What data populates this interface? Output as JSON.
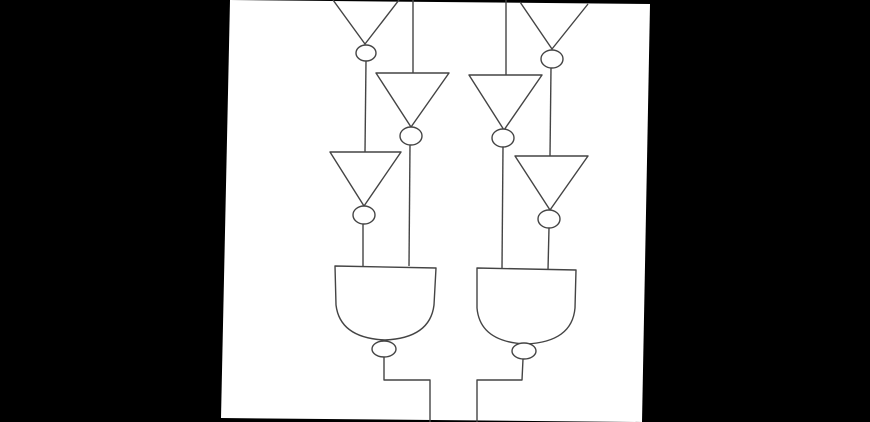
{
  "colors": {
    "background": "#000000",
    "paper": "#ffffff",
    "stroke": "#444444"
  },
  "diagram": {
    "type": "logic-circuit",
    "components": {
      "inverters": 6,
      "nand_gates": 2
    },
    "text_labels": []
  }
}
